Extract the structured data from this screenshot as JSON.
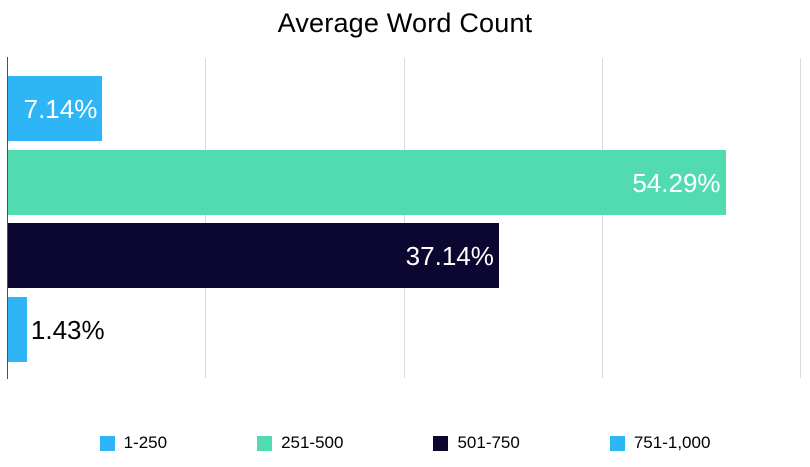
{
  "title": "Average Word Count",
  "colors": {
    "blue": "#2DB5F5",
    "teal": "#52DBB1",
    "navy": "#0B0730",
    "gridline": "#DBDBDB",
    "axis": "#4D4D4D",
    "title_text": "#000000",
    "label_text_inside": "#FFFFFF",
    "label_text_outside": "#000000",
    "legend_text": "#000000",
    "background": "#FFFFFF"
  },
  "chart_data": {
    "type": "bar",
    "orientation": "horizontal",
    "title": "Average Word Count",
    "categories": [
      "1-250",
      "251-500",
      "501-750",
      "751-1,000"
    ],
    "values": [
      7.14,
      54.29,
      37.14,
      1.43
    ],
    "labels": [
      "7.14%",
      "54.29%",
      "37.14%",
      "1.43%"
    ],
    "bar_colors": [
      "#2DB5F5",
      "#52DBB1",
      "#0B0730",
      "#2DB5F5"
    ],
    "label_inside": [
      true,
      true,
      true,
      false
    ],
    "xlabel": "",
    "ylabel": "",
    "xlim": [
      0,
      60
    ],
    "gridline_step": 15,
    "grid": true,
    "tick_labels_visible": false,
    "legend_position": "bottom",
    "legend": [
      {
        "label": "1-250",
        "color": "#2DB5F5"
      },
      {
        "label": "251-500",
        "color": "#52DBB1"
      },
      {
        "label": "501-750",
        "color": "#0B0730"
      },
      {
        "label": "751-1,000",
        "color": "#2DB5F5"
      }
    ]
  }
}
